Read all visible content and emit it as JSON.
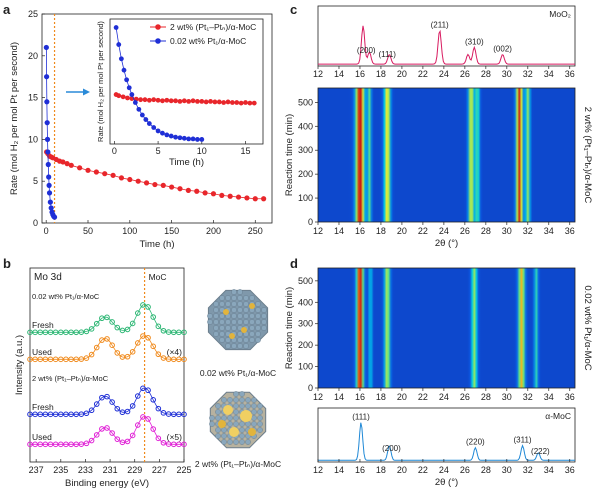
{
  "panel_letters": {
    "a": "a",
    "b": "b",
    "c": "c",
    "d": "d"
  },
  "chart_data": [
    {
      "id": "a",
      "type": "scatter",
      "xlabel": "Time (h)",
      "ylabel": "Rate (mol H₂ per mol Pt per second)",
      "xlim": [
        -5,
        270
      ],
      "ylim": [
        0,
        25
      ],
      "xticks": [
        0,
        50,
        100,
        150,
        200,
        250
      ],
      "yticks": [
        0,
        5,
        10,
        15,
        20,
        25
      ],
      "series": [
        {
          "name": "2 wt% (Pt₁–Ptₙ)/α-MoC",
          "color": "#e8262b",
          "x": [
            0.5,
            2,
            4,
            6,
            8,
            12,
            16,
            20,
            25,
            30,
            40,
            50,
            60,
            70,
            80,
            90,
            100,
            110,
            120,
            130,
            140,
            150,
            160,
            170,
            180,
            190,
            200,
            210,
            220,
            230,
            240,
            250,
            260
          ],
          "y": [
            8.5,
            8.3,
            8.0,
            7.9,
            7.8,
            7.6,
            7.4,
            7.3,
            7.1,
            6.9,
            6.6,
            6.3,
            6.1,
            5.9,
            5.7,
            5.4,
            5.2,
            5.0,
            4.8,
            4.6,
            4.5,
            4.3,
            4.1,
            3.9,
            3.8,
            3.6,
            3.5,
            3.3,
            3.2,
            3.1,
            3.0,
            2.9,
            2.9
          ]
        },
        {
          "name": "0.02 wt% Pt₁/α-MoC",
          "color": "#1f2fd6",
          "x": [
            0.2,
            0.5,
            0.8,
            1.2,
            1.6,
            2.0,
            2.5,
            3,
            3.5,
            4,
            5,
            6,
            7,
            8,
            9,
            10
          ],
          "y": [
            21,
            17.5,
            14.5,
            12,
            10,
            8.5,
            7,
            5.5,
            4.5,
            3.6,
            2.5,
            1.8,
            1.3,
            1.0,
            0.8,
            0.7
          ]
        }
      ],
      "reference_line": {
        "x": 10,
        "color": "#f08a1c",
        "style": "dotted"
      }
    },
    {
      "id": "a-inset",
      "type": "scatter",
      "xlabel": "Time (h)",
      "ylabel": "Rate (mol H₂ per mol Pt per second)",
      "xlim": [
        -0.5,
        17
      ],
      "ylim": [
        0,
        22
      ],
      "xticks": [
        0,
        5,
        10,
        15
      ],
      "series": [
        {
          "name": "2 wt% (Pt₁–Ptₙ)/α-MoC",
          "color": "#e8262b",
          "x": [
            0.2,
            0.5,
            1,
            1.5,
            2,
            2.5,
            3,
            3.5,
            4,
            4.5,
            5,
            5.5,
            6,
            6.5,
            7,
            7.5,
            8,
            8.5,
            9,
            9.5,
            10,
            10.5,
            11,
            11.5,
            12,
            12.5,
            13,
            13.5,
            14,
            14.5,
            15,
            15.5,
            16
          ],
          "y": [
            8.7,
            8.5,
            8.3,
            8.1,
            8.0,
            7.9,
            7.8,
            7.8,
            7.7,
            7.8,
            7.7,
            7.6,
            7.7,
            7.6,
            7.6,
            7.5,
            7.6,
            7.5,
            7.6,
            7.5,
            7.5,
            7.4,
            7.5,
            7.4,
            7.4,
            7.3,
            7.4,
            7.3,
            7.3,
            7.2,
            7.3,
            7.2,
            7.2
          ]
        },
        {
          "name": "0.02 wt% Pt₁/α-MoC",
          "color": "#1f2fd6",
          "x": [
            0.2,
            0.5,
            0.8,
            1.1,
            1.4,
            1.7,
            2.0,
            2.4,
            2.8,
            3.2,
            3.6,
            4.0,
            4.5,
            5,
            5.5,
            6,
            6.5,
            7,
            7.5,
            8,
            8.5,
            9,
            9.5,
            10
          ],
          "y": [
            20.5,
            17.5,
            15,
            13,
            11.3,
            9.9,
            8.7,
            7.3,
            6.1,
            5.1,
            4.3,
            3.6,
            2.9,
            2.3,
            1.9,
            1.6,
            1.4,
            1.2,
            1.1,
            1.0,
            0.9,
            0.9,
            0.8,
            0.8
          ]
        }
      ]
    },
    {
      "id": "b",
      "type": "line",
      "title": "Mo 3d",
      "xlabel": "Binding energy (eV)",
      "ylabel": "Intensity (a.u.)",
      "xlim": [
        237.5,
        225
      ],
      "xticks": [
        237,
        235,
        233,
        231,
        229,
        227,
        225
      ],
      "reference_line": {
        "x": 228.2,
        "label": "MoC",
        "color": "#f08a1c",
        "style": "dotted"
      },
      "group_labels": [
        "0.02 wt% Pt₁/α-MoC",
        "2 wt% (Pt₁–Ptₙ)/α-MoC"
      ],
      "series": [
        {
          "name": "Fresh",
          "group": 0,
          "color": "#2bb673",
          "peaks": [
            [
              231.4,
              0.55
            ],
            [
              228.2,
              1.0
            ]
          ],
          "scale_label": ""
        },
        {
          "name": "Used",
          "group": 0,
          "color": "#f08a1c",
          "peaks": [
            [
              231.4,
              0.75
            ],
            [
              228.2,
              0.85
            ]
          ],
          "scale_label": "(×4)"
        },
        {
          "name": "Fresh",
          "group": 1,
          "color": "#1f2fd6",
          "peaks": [
            [
              231.4,
              0.65
            ],
            [
              228.2,
              0.95
            ]
          ],
          "scale_label": ""
        },
        {
          "name": "Used",
          "group": 1,
          "color": "#e020d6",
          "peaks": [
            [
              231.4,
              0.6
            ],
            [
              228.2,
              1.0
            ]
          ],
          "scale_label": "(×5)"
        }
      ],
      "images": [
        {
          "name": "nanoparticle-single-atom",
          "caption": "0.02 wt% Pt₁/α-MoC"
        },
        {
          "name": "nanoparticle-cluster",
          "caption": "2 wt% (Pt₁–Ptₙ)/α-MoC"
        }
      ]
    },
    {
      "id": "c",
      "type": "heatmap",
      "side_label": "2 wt% (Pt₁–Ptₙ)/α-MoC",
      "xlabel": "2θ (°)",
      "ylabel": "Reaction time (min)",
      "xlim": [
        12,
        36.5
      ],
      "xticks": [
        12,
        14,
        16,
        18,
        20,
        22,
        24,
        26,
        28,
        30,
        32,
        34,
        36
      ],
      "ylim": [
        0,
        560
      ],
      "yticks": [
        0,
        100,
        200,
        300,
        400,
        500
      ],
      "bands": [
        [
          16.0,
          0.75,
          1.0
        ],
        [
          18.6,
          0.55,
          0.7
        ],
        [
          26.6,
          0.5,
          0.65
        ],
        [
          27.2,
          0.4,
          0.45
        ],
        [
          31.2,
          0.55,
          0.95
        ],
        [
          32.0,
          0.4,
          0.55
        ],
        [
          16.9,
          0.35,
          0.45
        ]
      ],
      "reference": {
        "name": "MoO₂",
        "color": "#d81b60",
        "x": [
          12,
          15.5,
          16.3,
          16.9,
          17.6,
          18.8,
          19.5,
          22.5,
          23.6,
          24.6,
          26.3,
          26.9,
          27.6,
          29.6,
          30.5,
          34.5,
          36
        ],
        "y": [
          0.05,
          0.1,
          0.8,
          0.25,
          0.1,
          0.2,
          0.07,
          0.08,
          0.7,
          0.1,
          0.2,
          0.35,
          0.1,
          0.2,
          0.08,
          0.15,
          0.05
        ],
        "peaks": [
          {
            "label": "(200)",
            "x": 16.6
          },
          {
            "label": "(111)",
            "x": 18.6
          },
          {
            "label": "(211)",
            "x": 23.6
          },
          {
            "label": "(310)",
            "x": 26.9
          },
          {
            "label": "(002)",
            "x": 29.6
          }
        ]
      }
    },
    {
      "id": "d",
      "type": "heatmap",
      "side_label": "0.02 wt% Pt₁/α-MoC",
      "xlabel": "2θ (°)",
      "ylabel": "Reaction time (min)",
      "xlim": [
        12,
        36.5
      ],
      "xticks": [
        12,
        14,
        16,
        18,
        20,
        22,
        24,
        26,
        28,
        30,
        32,
        34,
        36
      ],
      "ylim": [
        0,
        560
      ],
      "yticks": [
        0,
        100,
        200,
        300,
        400,
        500
      ],
      "bands": [
        [
          16.0,
          0.6,
          1.0
        ],
        [
          18.6,
          0.5,
          0.6
        ],
        [
          26.9,
          0.5,
          0.55
        ],
        [
          31.4,
          0.55,
          0.75
        ],
        [
          32.8,
          0.35,
          0.4
        ],
        [
          17.0,
          0.3,
          0.35
        ]
      ],
      "reference": {
        "name": "α-MoC",
        "color": "#1f88d6",
        "x": [
          12,
          15.3,
          16.1,
          16.9,
          18.2,
          18.8,
          19.6,
          26.4,
          27.0,
          27.7,
          30.8,
          31.5,
          32.2,
          33.0,
          33.7,
          36
        ],
        "y": [
          0.05,
          0.1,
          0.9,
          0.12,
          0.15,
          0.35,
          0.08,
          0.1,
          0.3,
          0.07,
          0.1,
          0.35,
          0.15,
          0.18,
          0.06,
          0.04
        ],
        "peaks": [
          {
            "label": "(111)",
            "x": 16.1
          },
          {
            "label": "(200)",
            "x": 19.0
          },
          {
            "label": "(220)",
            "x": 27.0
          },
          {
            "label": "(311)",
            "x": 31.5
          },
          {
            "label": "(222)",
            "x": 33.2
          }
        ]
      }
    }
  ]
}
